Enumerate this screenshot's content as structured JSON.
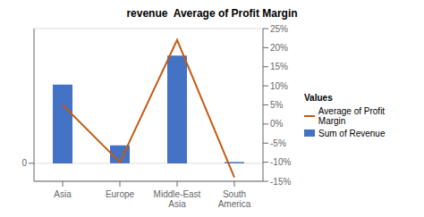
{
  "chart_data": {
    "type": "bar",
    "title": "revenue  Average of Profit Margin",
    "categories": [
      "Asia",
      "Europe",
      "Middle-East\nAsia",
      "South\nAmerica"
    ],
    "series": [
      {
        "name": "Sum of Revenue",
        "type": "bar",
        "color": "#4472C4",
        "values": [
          3500,
          800,
          4800,
          60
        ]
      },
      {
        "name": "Average of Profit Margin",
        "type": "line",
        "color": "#C55A11",
        "axis": "y2",
        "values": [
          0.05,
          -0.1,
          0.22,
          -0.14
        ]
      }
    ],
    "ylim": [
      -800,
      6000
    ],
    "yticks": [
      0
    ],
    "y2lim": [
      -0.15,
      0.25
    ],
    "y2ticks": [
      {
        "value": -0.15,
        "label": "-15%"
      },
      {
        "value": -0.1,
        "label": "-10%"
      },
      {
        "value": -0.05,
        "label": "-5%"
      },
      {
        "value": 0.0,
        "label": "0%"
      },
      {
        "value": 0.05,
        "label": "5%"
      },
      {
        "value": 0.1,
        "label": "10%"
      },
      {
        "value": 0.15,
        "label": "15%"
      },
      {
        "value": 0.2,
        "label": "20%"
      },
      {
        "value": 0.25,
        "label": "25%"
      }
    ],
    "grid": true,
    "legend": "right",
    "annotations": [
      "Values"
    ]
  }
}
